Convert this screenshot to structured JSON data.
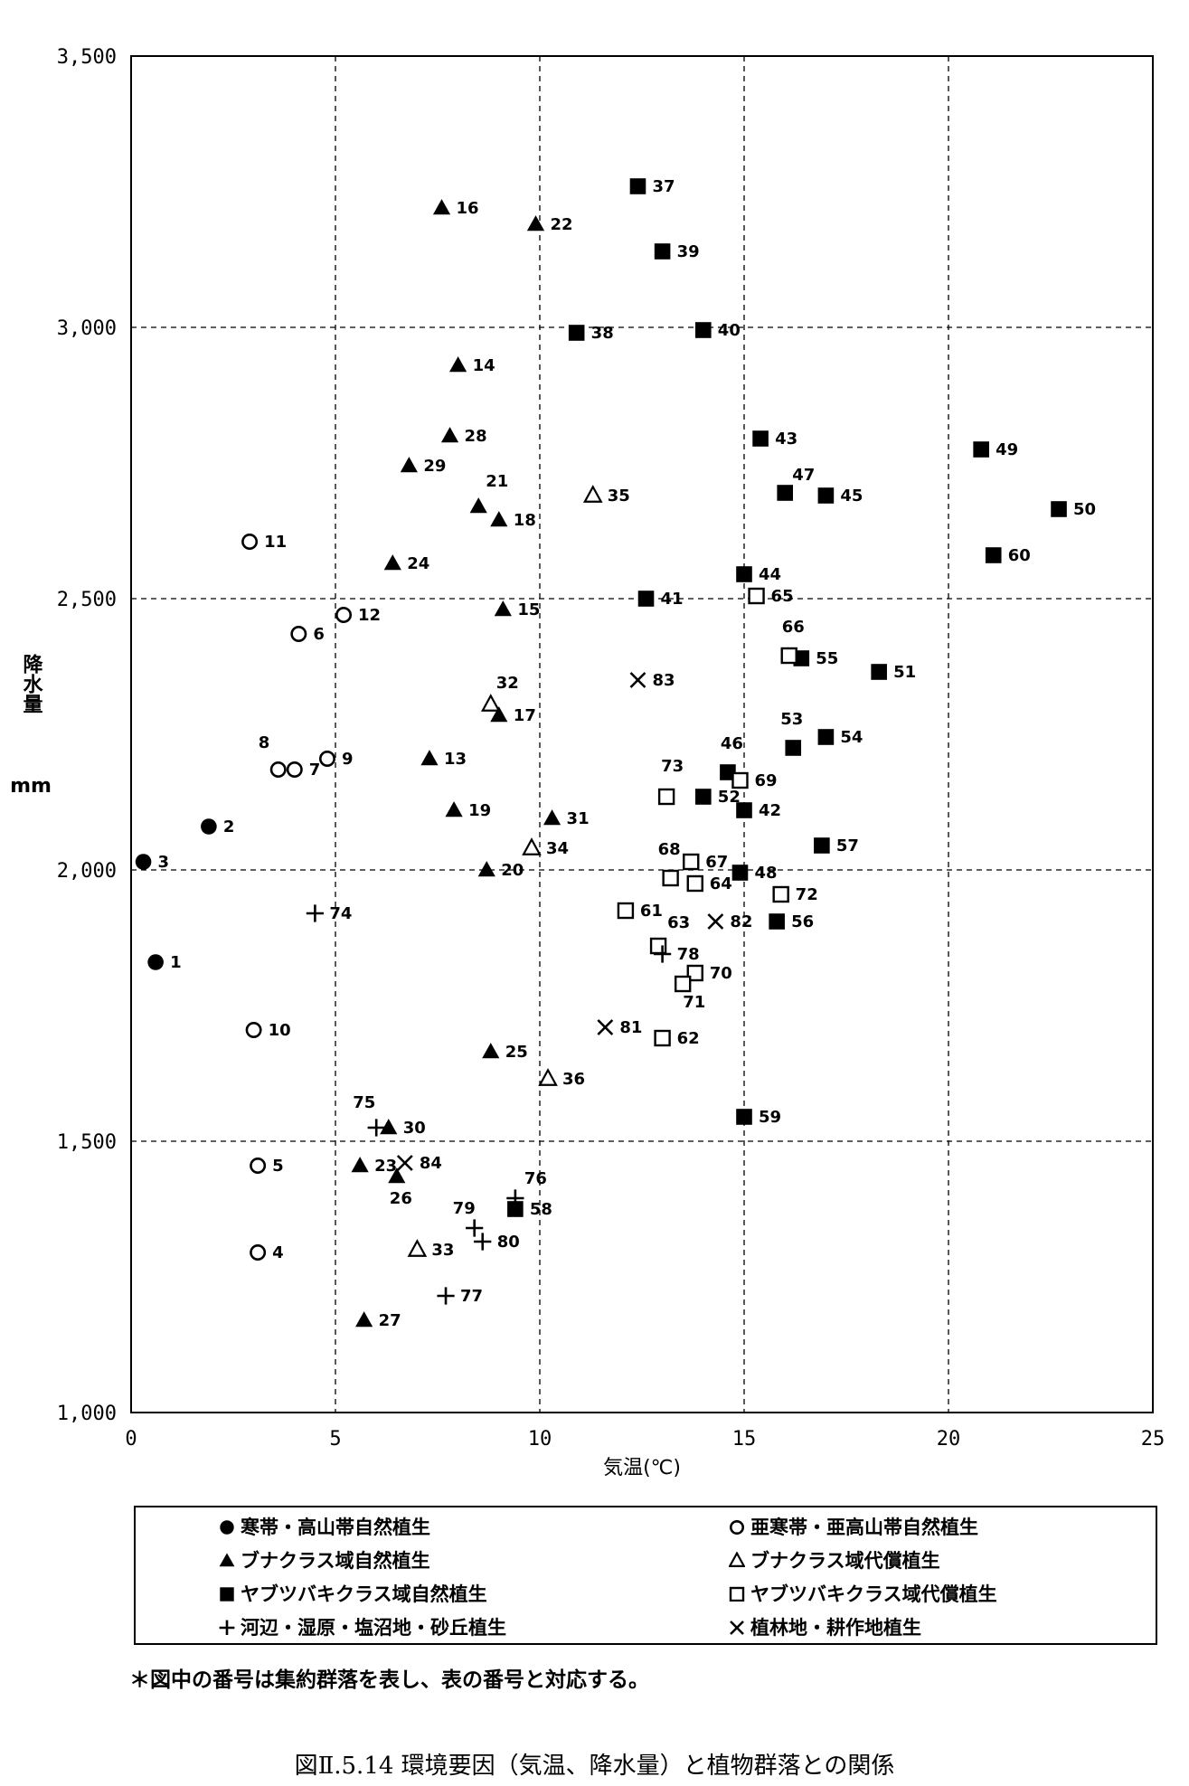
{
  "chart_data": {
    "type": "scatter",
    "xlabel": "気温(℃)",
    "ylabel": "降水量",
    "yunit": "mm",
    "xlim": [
      0,
      25
    ],
    "ylim": [
      1000,
      3500
    ],
    "xticks": [
      0,
      5,
      10,
      15,
      20,
      25
    ],
    "yticks": [
      1000,
      1500,
      2000,
      2500,
      3000,
      3500
    ],
    "ytick_labels": [
      "1,000",
      "1,500",
      "2,000",
      "2,500",
      "3,000",
      "3,500"
    ],
    "grid": true,
    "series": [
      {
        "name": "寒帯・高山帯自然植生",
        "marker": "filled-circle",
        "points": [
          {
            "id": "1",
            "x": 0.6,
            "y": 1830
          },
          {
            "id": "2",
            "x": 1.9,
            "y": 2080
          },
          {
            "id": "3",
            "x": 0.3,
            "y": 2015
          }
        ]
      },
      {
        "name": "亜寒帯・亜高山帯自然植生",
        "marker": "open-circle",
        "points": [
          {
            "id": "4",
            "x": 3.1,
            "y": 1295
          },
          {
            "id": "5",
            "x": 3.1,
            "y": 1455
          },
          {
            "id": "6",
            "x": 4.1,
            "y": 2435
          },
          {
            "id": "7",
            "x": 4.0,
            "y": 2185
          },
          {
            "id": "8",
            "x": 3.6,
            "y": 2185
          },
          {
            "id": "9",
            "x": 4.8,
            "y": 2205
          },
          {
            "id": "10",
            "x": 3.0,
            "y": 1705
          },
          {
            "id": "11",
            "x": 2.9,
            "y": 2605
          },
          {
            "id": "12",
            "x": 5.2,
            "y": 2470
          }
        ]
      },
      {
        "name": "ブナクラス域自然植生",
        "marker": "filled-triangle",
        "points": [
          {
            "id": "13",
            "x": 7.3,
            "y": 2205
          },
          {
            "id": "14",
            "x": 8.0,
            "y": 2930
          },
          {
            "id": "15",
            "x": 9.1,
            "y": 2480
          },
          {
            "id": "16",
            "x": 7.6,
            "y": 3220
          },
          {
            "id": "17",
            "x": 9.0,
            "y": 2285
          },
          {
            "id": "18",
            "x": 9.0,
            "y": 2645
          },
          {
            "id": "19",
            "x": 7.9,
            "y": 2110
          },
          {
            "id": "20",
            "x": 8.7,
            "y": 2000
          },
          {
            "id": "21",
            "x": 8.5,
            "y": 2670
          },
          {
            "id": "22",
            "x": 9.9,
            "y": 3190
          },
          {
            "id": "23",
            "x": 5.6,
            "y": 1455
          },
          {
            "id": "24",
            "x": 6.4,
            "y": 2565
          },
          {
            "id": "25",
            "x": 8.8,
            "y": 1665
          },
          {
            "id": "26",
            "x": 6.5,
            "y": 1435
          },
          {
            "id": "27",
            "x": 5.7,
            "y": 1170
          },
          {
            "id": "28",
            "x": 7.8,
            "y": 2800
          },
          {
            "id": "29",
            "x": 6.8,
            "y": 2745
          },
          {
            "id": "30",
            "x": 6.3,
            "y": 1525
          },
          {
            "id": "31",
            "x": 10.3,
            "y": 2095
          }
        ]
      },
      {
        "name": "ブナクラス域代償植生",
        "marker": "open-triangle",
        "points": [
          {
            "id": "32",
            "x": 8.8,
            "y": 2305
          },
          {
            "id": "33",
            "x": 7.0,
            "y": 1300
          },
          {
            "id": "34",
            "x": 9.8,
            "y": 2040
          },
          {
            "id": "35",
            "x": 11.3,
            "y": 2690
          },
          {
            "id": "36",
            "x": 10.2,
            "y": 1615
          }
        ]
      },
      {
        "name": "ヤブツバキクラス域自然植生",
        "marker": "filled-square",
        "points": [
          {
            "id": "37",
            "x": 12.4,
            "y": 3260
          },
          {
            "id": "38",
            "x": 10.9,
            "y": 2990
          },
          {
            "id": "39",
            "x": 13.0,
            "y": 3140
          },
          {
            "id": "40",
            "x": 14.0,
            "y": 2995
          },
          {
            "id": "41",
            "x": 12.6,
            "y": 2500
          },
          {
            "id": "42",
            "x": 15.0,
            "y": 2110
          },
          {
            "id": "43",
            "x": 15.4,
            "y": 2795
          },
          {
            "id": "44",
            "x": 15.0,
            "y": 2545
          },
          {
            "id": "45",
            "x": 17.0,
            "y": 2690
          },
          {
            "id": "46",
            "x": 14.6,
            "y": 2180
          },
          {
            "id": "47",
            "x": 16.0,
            "y": 2695
          },
          {
            "id": "48",
            "x": 14.9,
            "y": 1995
          },
          {
            "id": "49",
            "x": 20.8,
            "y": 2775
          },
          {
            "id": "50",
            "x": 22.7,
            "y": 2665
          },
          {
            "id": "51",
            "x": 18.3,
            "y": 2365
          },
          {
            "id": "52",
            "x": 14.0,
            "y": 2135
          },
          {
            "id": "53",
            "x": 16.2,
            "y": 2225
          },
          {
            "id": "54",
            "x": 17.0,
            "y": 2245
          },
          {
            "id": "55",
            "x": 16.4,
            "y": 2390
          },
          {
            "id": "56",
            "x": 15.8,
            "y": 1905
          },
          {
            "id": "57",
            "x": 16.9,
            "y": 2045
          },
          {
            "id": "58",
            "x": 9.4,
            "y": 1375
          },
          {
            "id": "59",
            "x": 15.0,
            "y": 1545
          },
          {
            "id": "60",
            "x": 21.1,
            "y": 2580
          }
        ]
      },
      {
        "name": "ヤブツバキクラス域代償植生",
        "marker": "open-square",
        "points": [
          {
            "id": "61",
            "x": 12.1,
            "y": 1925
          },
          {
            "id": "62",
            "x": 13.0,
            "y": 1690
          },
          {
            "id": "63",
            "x": 12.9,
            "y": 1860
          },
          {
            "id": "64",
            "x": 13.8,
            "y": 1975
          },
          {
            "id": "65",
            "x": 15.3,
            "y": 2505
          },
          {
            "id": "66",
            "x": 16.1,
            "y": 2395
          },
          {
            "id": "67",
            "x": 13.7,
            "y": 2015
          },
          {
            "id": "68",
            "x": 13.2,
            "y": 1985
          },
          {
            "id": "69",
            "x": 14.9,
            "y": 2165
          },
          {
            "id": "70",
            "x": 13.8,
            "y": 1810
          },
          {
            "id": "71",
            "x": 13.5,
            "y": 1790
          },
          {
            "id": "72",
            "x": 15.9,
            "y": 1955
          },
          {
            "id": "73",
            "x": 13.1,
            "y": 2135
          }
        ]
      },
      {
        "name": "河辺・湿原・塩沼地・砂丘植生",
        "marker": "plus",
        "points": [
          {
            "id": "74",
            "x": 4.5,
            "y": 1920
          },
          {
            "id": "75",
            "x": 6.0,
            "y": 1525
          },
          {
            "id": "76",
            "x": 9.4,
            "y": 1395
          },
          {
            "id": "77",
            "x": 7.7,
            "y": 1215
          },
          {
            "id": "78",
            "x": 13.0,
            "y": 1845
          },
          {
            "id": "79",
            "x": 8.4,
            "y": 1340
          },
          {
            "id": "80",
            "x": 8.6,
            "y": 1315
          }
        ]
      },
      {
        "name": "植林地・耕作地植生",
        "marker": "cross",
        "points": [
          {
            "id": "81",
            "x": 11.6,
            "y": 1710
          },
          {
            "id": "82",
            "x": 14.3,
            "y": 1905
          },
          {
            "id": "83",
            "x": 12.4,
            "y": 2350
          },
          {
            "id": "84",
            "x": 6.7,
            "y": 1460
          }
        ]
      }
    ]
  },
  "legend": {
    "items": [
      {
        "marker": "filled-circle",
        "label": "寒帯・高山帯自然植生"
      },
      {
        "marker": "open-circle",
        "label": "亜寒帯・亜高山帯自然植生"
      },
      {
        "marker": "filled-triangle",
        "label": "ブナクラス域自然植生"
      },
      {
        "marker": "open-triangle",
        "label": "ブナクラス域代償植生"
      },
      {
        "marker": "filled-square",
        "label": "ヤブツバキクラス域自然植生"
      },
      {
        "marker": "open-square",
        "label": "ヤブツバキクラス域代償植生"
      },
      {
        "marker": "plus",
        "label": "河辺・湿原・塩沼地・砂丘植生"
      },
      {
        "marker": "cross",
        "label": "植林地・耕作地植生"
      }
    ]
  },
  "note": "＊図中の番号は集約群落を表し、表の番号と対応する。",
  "caption": "図Ⅱ.5.14 環境要因（気温、降水量）と植物群落との関係"
}
